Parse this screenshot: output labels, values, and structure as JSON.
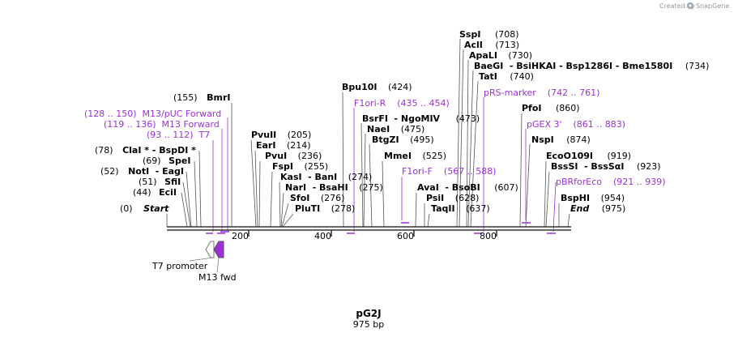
{
  "credit": {
    "created_by": "Created by",
    "brand": "SnapGene"
  },
  "plasmid": {
    "name": "pG2J",
    "length_label": "975 bp",
    "length": 975
  },
  "ruler_ticks": [
    "200",
    "400",
    "600",
    "800"
  ],
  "features": [
    {
      "name": "T7 promoter",
      "color": "#ffffff"
    },
    {
      "name": "M13 fwd",
      "color": "#9b30d9"
    }
  ],
  "sites": [
    {
      "num": "(0)",
      "name": "Start",
      "italic": true
    },
    {
      "num": "(44)",
      "name": "EciI"
    },
    {
      "num": "(51)",
      "name": "SfiI"
    },
    {
      "num": "(52)",
      "name": "NotI",
      "extra": "- EagI"
    },
    {
      "num": "(69)",
      "name": "SpeI"
    },
    {
      "num": "(78)",
      "name": "ClaI * - BspDI *"
    },
    {
      "num": "(155)",
      "name": "BmrI",
      "num_first": true
    },
    {
      "name": "PvuII",
      "num": "(205)"
    },
    {
      "name": "EarI",
      "num": "(214)"
    },
    {
      "name": "PvuI",
      "num": "(236)"
    },
    {
      "name": "FspI",
      "num": "(255)"
    },
    {
      "name": "KasI",
      "extra": "- BanI",
      "num": "(274)"
    },
    {
      "name": "NarI",
      "extra": "- BsaHI",
      "num": "(275)"
    },
    {
      "name": "SfoI",
      "num": "(276)"
    },
    {
      "name": "PluTI",
      "num": "(278)"
    },
    {
      "name": "Bpu10I",
      "num": "(424)"
    },
    {
      "name": "BsrFI",
      "extra": "- NgoMIV",
      "num": "(473)"
    },
    {
      "name": "NaeI",
      "num": "(475)"
    },
    {
      "name": "BtgZI",
      "num": "(495)"
    },
    {
      "name": "MmeI",
      "num": "(525)"
    },
    {
      "name": "AvaI",
      "extra": "- BsoBI",
      "num": "(607)"
    },
    {
      "name": "PsiI",
      "num": "(628)"
    },
    {
      "name": "TaqII",
      "num": "(637)"
    },
    {
      "name": "SspI",
      "num": "(708)"
    },
    {
      "name": "AclI",
      "num": "(713)"
    },
    {
      "name": "ApaLI",
      "num": "(730)"
    },
    {
      "name": "BaeGI",
      "extra": "- BsiHKAI   - Bsp1286I   - Bme1580I",
      "num": "(734)"
    },
    {
      "name": "TatI",
      "num": "(740)"
    },
    {
      "name": "PfoI",
      "num": "(860)"
    },
    {
      "name": "NspI",
      "num": "(874)"
    },
    {
      "name": "EcoO109I",
      "num": "(919)"
    },
    {
      "name": "BssSI",
      "extra": "- BssSαI",
      "num": "(923)"
    },
    {
      "name": "BspHI",
      "num": "(954)"
    },
    {
      "name": "End",
      "italic": true,
      "num": "(975)"
    }
  ],
  "primers": [
    {
      "text": "(128 .. 150)  M13/pUC Forward"
    },
    {
      "text": "(119 .. 136)  M13 Forward"
    },
    {
      "text": "(93 .. 112)  T7"
    },
    {
      "text": "F1ori-R    (435 .. 454)"
    },
    {
      "text": "F1ori-F    (567 .. 588)"
    },
    {
      "text": "pRS-marker    (742 .. 761)"
    },
    {
      "text": "pGEX 3'    (861 .. 883)"
    },
    {
      "text": "pBRforEco    (921 .. 939)"
    }
  ]
}
